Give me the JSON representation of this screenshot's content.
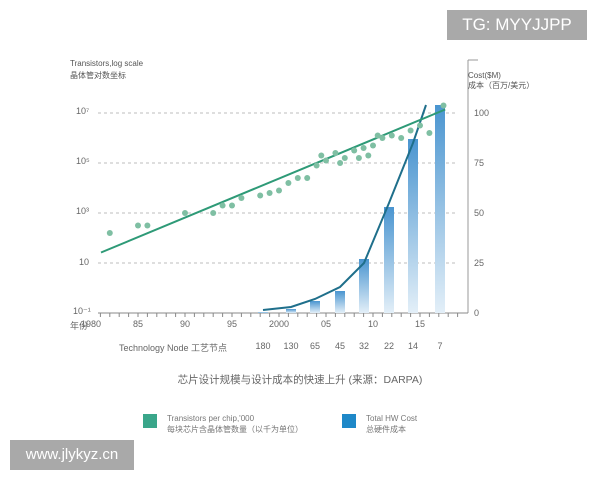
{
  "watermarks": {
    "top_right": "TG: MYYJJPP",
    "bottom_left": "www.jlykyz.cn"
  },
  "left_axis": {
    "title_en": "Transistors,log scale",
    "title_zh": "晶体管对数坐标",
    "ticks": [
      "10⁷",
      "10⁵",
      "10³",
      "10",
      "10⁻¹"
    ]
  },
  "right_axis": {
    "title_en": "Cost($M)",
    "title_zh": "成本（百万/美元）",
    "ticks": [
      "100",
      "75",
      "50",
      "25",
      "0"
    ]
  },
  "x_axis": {
    "year_label": "年份",
    "year_ticks": [
      "1980",
      "85",
      "90",
      "95",
      "2000",
      "05",
      "10",
      "15"
    ],
    "node_label": "Technology Node 工艺节点",
    "node_ticks": [
      "180",
      "130",
      "65",
      "45",
      "32",
      "22",
      "14",
      "7"
    ]
  },
  "caption": "芯片设计规模与设计成本的快速上升 (来源：DARPA)",
  "legend": {
    "items": [
      {
        "en": "Transistors per chip,'000",
        "zh": "每块芯片含晶体管数量（以千为单位）",
        "color": "#3aa68a"
      },
      {
        "en": "Total HW Cost",
        "zh": "总硬件成本",
        "color": "#1e88c8"
      }
    ]
  },
  "colors": {
    "dots": "#7fbfa3",
    "trend_line": "#2e9a77",
    "cost_line": "#1f6f8b",
    "bar_top": "#4a95d0",
    "bar_bottom": "#dcebf6",
    "grid": "#bbbbbb"
  },
  "chart_data": {
    "type": "bar+line+scatter",
    "title": "芯片设计规模与设计成本的快速上升 (来源：DARPA)",
    "xlabel": "年份 / Technology Node 工艺节点",
    "ylabel_left": "Transistors,log scale 晶体管对数坐标",
    "ylabel_right": "Cost($M) 成本（百万/美元）",
    "ylim_left_log10": [
      -1,
      7
    ],
    "ylim_right": [
      0,
      100
    ],
    "grid": "horizontal dashed",
    "legend_position": "bottom",
    "series": [
      {
        "name": "Transistors per chip,'000 (scatter)",
        "type": "scatter",
        "axis": "left",
        "x_year": [
          1982,
          1985,
          1986,
          1990,
          1993,
          1994,
          1995,
          1996,
          1998,
          1999,
          2000,
          2001,
          2002,
          2003,
          2004,
          2004.5,
          2005,
          2006,
          2006.5,
          2007,
          2008,
          2008.5,
          2009,
          2009.5,
          2010,
          2010.5,
          2011,
          2012,
          2013,
          2014,
          2015,
          2016,
          2017.5
        ],
        "log10_y": [
          2.2,
          2.5,
          2.5,
          3.0,
          3.0,
          3.3,
          3.3,
          3.6,
          3.7,
          3.8,
          3.9,
          4.2,
          4.4,
          4.4,
          4.9,
          5.3,
          5.1,
          5.4,
          5.0,
          5.2,
          5.5,
          5.2,
          5.6,
          5.3,
          5.7,
          6.1,
          6.0,
          6.1,
          6.0,
          6.3,
          6.5,
          6.2,
          7.3
        ]
      },
      {
        "name": "Transistors trend line",
        "type": "line",
        "axis": "left",
        "x_year": [
          1980,
          2018
        ],
        "log10_y": [
          1.9,
          7.3
        ]
      },
      {
        "name": "Total HW Cost",
        "type": "bar",
        "axis": "right",
        "categories": [
          "180",
          "130",
          "65",
          "45",
          "32",
          "22",
          "14",
          "7"
        ],
        "values": [
          0.5,
          2,
          6,
          11,
          27,
          53,
          87,
          104
        ]
      },
      {
        "name": "Cost curve",
        "type": "line",
        "axis": "right",
        "categories": [
          "180",
          "130",
          "65",
          "45",
          "32",
          "22",
          "14",
          "7"
        ],
        "values": [
          1.5,
          3,
          7,
          13,
          25,
          55,
          85,
          105
        ]
      }
    ]
  }
}
